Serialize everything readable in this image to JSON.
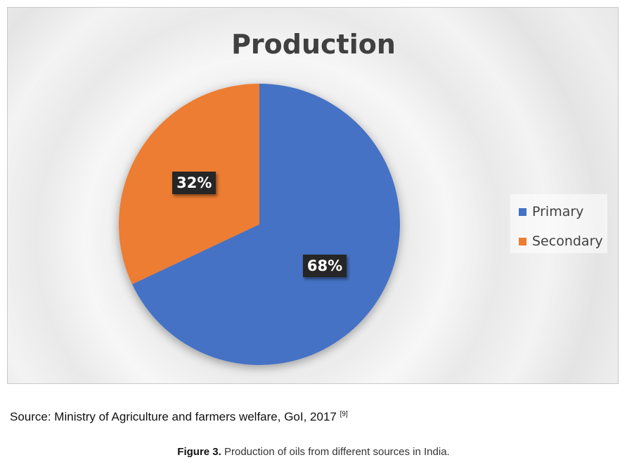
{
  "chart_data": {
    "type": "pie",
    "title": "Production",
    "categories": [
      "Primary",
      "Secondary"
    ],
    "values": [
      68,
      32
    ],
    "labels": [
      "68%",
      "32%"
    ],
    "colors": [
      "#4472C4",
      "#ED7D31"
    ],
    "legend": "right"
  },
  "footer": {
    "source_text": "Source: Ministry of Agriculture and farmers welfare, GoI, 2017",
    "source_ref": "[9]",
    "caption_label": "Figure 3.",
    "caption_text": " Production of oils from different sources in India."
  }
}
